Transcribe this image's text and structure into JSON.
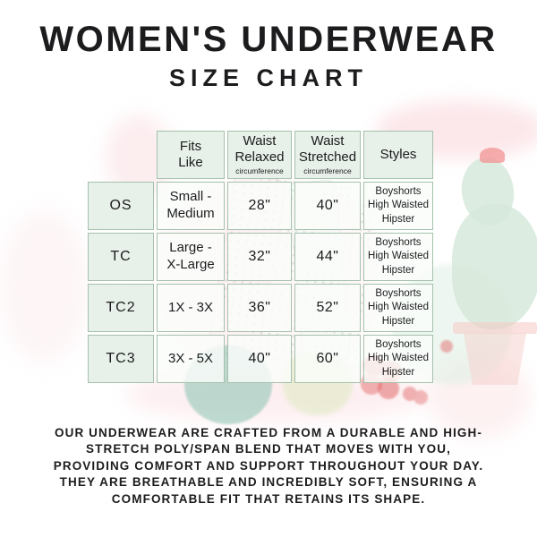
{
  "title": {
    "main": "WOMEN'S UNDERWEAR",
    "sub": "SIZE CHART"
  },
  "table": {
    "columns": [
      {
        "label": ""
      },
      {
        "lines": [
          "Fits",
          "Like"
        ]
      },
      {
        "lines": [
          "Waist",
          "Relaxed"
        ],
        "sublabel": "circumference"
      },
      {
        "lines": [
          "Waist",
          "Stretched"
        ],
        "sublabel": "circumference"
      },
      {
        "lines": [
          "Styles"
        ]
      }
    ],
    "rows": [
      {
        "size": "OS",
        "fits_like": [
          "Small -",
          "Medium"
        ],
        "waist_relaxed": "28\"",
        "waist_stretched": "40\"",
        "styles": [
          "Boyshorts",
          "High Waisted",
          "Hipster"
        ]
      },
      {
        "size": "TC",
        "fits_like": [
          "Large -",
          "X-Large"
        ],
        "waist_relaxed": "32\"",
        "waist_stretched": "44\"",
        "styles": [
          "Boyshorts",
          "High Waisted",
          "Hipster"
        ]
      },
      {
        "size": "TC2",
        "fits_like": [
          "1X - 3X"
        ],
        "waist_relaxed": "36\"",
        "waist_stretched": "52\"",
        "styles": [
          "Boyshorts",
          "High Waisted",
          "Hipster"
        ]
      },
      {
        "size": "TC3",
        "fits_like": [
          "3X - 5X"
        ],
        "waist_relaxed": "40\"",
        "waist_stretched": "60\"",
        "styles": [
          "Boyshorts",
          "High Waisted",
          "Hipster"
        ]
      }
    ]
  },
  "description": {
    "lines": [
      "OUR UNDERWEAR ARE CRAFTED FROM A DURABLE AND HIGH-",
      "STRETCH POLY/SPAN BLEND THAT MOVES WITH YOU,",
      "PROVIDING COMFORT AND SUPPORT THROUGHOUT YOUR DAY.",
      "THEY ARE BREATHABLE AND INCREDIBLY SOFT, ENSURING A",
      "COMFORTABLE FIT THAT RETAINS ITS SHAPE."
    ]
  },
  "colors": {
    "table_border": "#a5c1ac",
    "header_cell_bg": "#e7f0e9",
    "data_cell_bg": "#fafdfb",
    "text": "#1c1c1e",
    "watercolor_green": "#d6e9db",
    "watercolor_pink": "#f9d6db",
    "watercolor_teal": "#7ebdaa",
    "watercolor_red": "#df5d5d"
  }
}
